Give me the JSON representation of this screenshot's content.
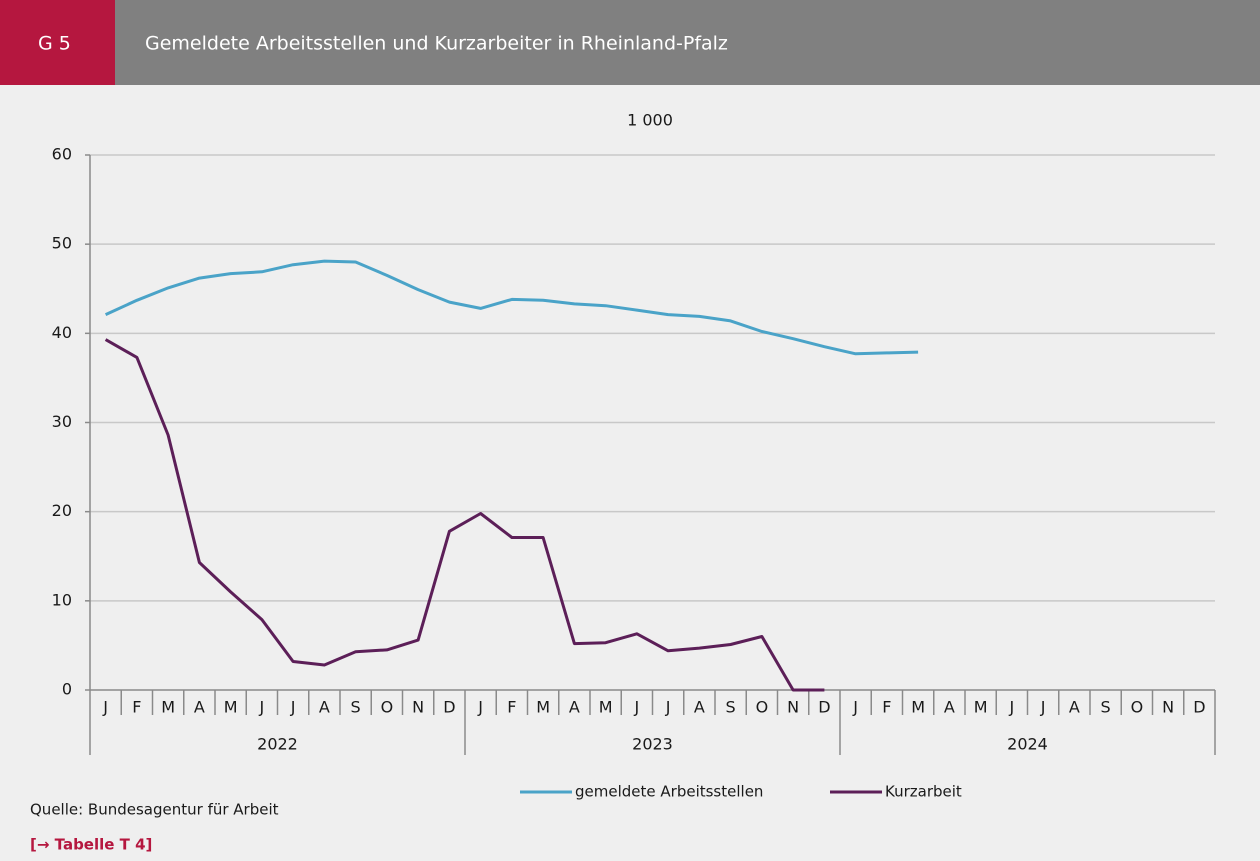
{
  "chart_data": {
    "type": "line",
    "chart_number": "G 5",
    "title": "Gemeldete Arbeitsstellen und Kurzarbeiter in Rheinland-Pfalz",
    "unit_label": "1 000",
    "categories": [
      "J",
      "F",
      "M",
      "A",
      "M",
      "J",
      "J",
      "A",
      "S",
      "O",
      "N",
      "D",
      "J",
      "F",
      "M",
      "A",
      "M",
      "J",
      "J",
      "A",
      "S",
      "O",
      "N",
      "D",
      "J",
      "F",
      "M",
      "A",
      "M",
      "J",
      "J",
      "A",
      "S",
      "O",
      "N",
      "D"
    ],
    "year_groups": [
      "2022",
      "2023",
      "2024"
    ],
    "ylim": [
      0,
      60
    ],
    "yticks": [
      0,
      10,
      20,
      30,
      40,
      50,
      60
    ],
    "grid": true,
    "series": [
      {
        "name": "gemeldete Arbeitsstellen",
        "color": "#4aa3c8",
        "values": [
          42.1,
          43.7,
          45.1,
          46.2,
          46.7,
          46.9,
          47.7,
          48.1,
          48.0,
          46.5,
          44.9,
          43.5,
          42.8,
          43.8,
          43.7,
          43.3,
          43.1,
          42.6,
          42.1,
          41.9,
          41.4,
          40.2,
          39.4,
          38.5,
          37.7,
          37.8,
          37.9,
          null,
          null,
          null,
          null,
          null,
          null,
          null,
          null,
          null
        ]
      },
      {
        "name": "Kurzarbeit",
        "color": "#5c1f58",
        "values": [
          39.3,
          37.3,
          28.6,
          14.3,
          11.0,
          7.9,
          3.2,
          2.8,
          4.3,
          4.5,
          5.6,
          17.8,
          19.8,
          17.1,
          17.1,
          5.2,
          5.3,
          6.3,
          4.4,
          4.7,
          5.1,
          6.0,
          0,
          0,
          null,
          null,
          null,
          null,
          null,
          null,
          null,
          null,
          null,
          null,
          null,
          null
        ]
      }
    ],
    "source": "Quelle: Bundesagentur für Arbeit",
    "link": "[→ Tabelle T 4]"
  }
}
